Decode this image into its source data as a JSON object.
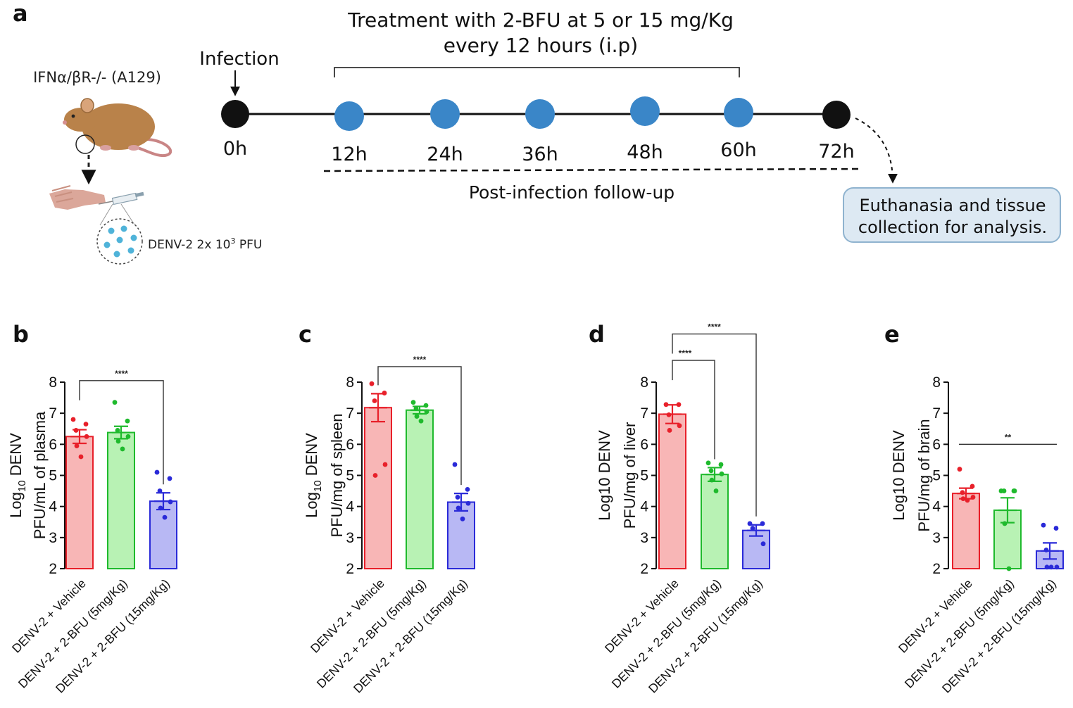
{
  "panels": {
    "a": "a",
    "b": "b",
    "c": "c",
    "d": "d",
    "e": "e"
  },
  "timeline": {
    "treatment_line1": "Treatment with 2-BFU at 5 or 15 mg/Kg",
    "treatment_line2": "every 12 hours (i.p)",
    "infection_label": "Infection",
    "mouse_label": "IFNα/βR-/- (A129)",
    "inoculum_label": "DENV-2 2x 10",
    "inoculum_exp": "3",
    "inoculum_unit": " PFU",
    "followup_label": "Post-infection follow-up",
    "euthanasia_line1": "Euthanasia and tissue",
    "euthanasia_line2": "collection for analysis.",
    "times": [
      "0h",
      "12h",
      "24h",
      "36h",
      "48h",
      "60h",
      "72h"
    ],
    "time_types": [
      "infection",
      "treatment",
      "treatment",
      "treatment",
      "treatment",
      "treatment",
      "endpoint"
    ],
    "colors": {
      "infection": "#111111",
      "treatment": "#3a86c8",
      "endpoint": "#111111"
    }
  },
  "chart_data": [
    {
      "panel": "b",
      "type": "bar",
      "ylabel_prefix": "Log",
      "ylabel_sub": "10",
      "ylabel_rest": " DENV",
      "ylabel2": "PFU/mL of plasma",
      "ylim": [
        2,
        8
      ],
      "yticks": [
        "2",
        "3",
        "4",
        "5",
        "6",
        "7",
        "8"
      ],
      "categories": [
        "DENV-2 + Vehicle",
        "DENV-2 + 2-BFU (5mg/Kg)",
        "DENV-2 + 2-BFU (15mg/Kg)"
      ],
      "colors": [
        "#e8202a",
        "#1fba2d",
        "#2a2ad8"
      ],
      "fills": [
        "#f8b6b6",
        "#b8f2b4",
        "#b8b8f4"
      ],
      "means": [
        6.25,
        6.38,
        4.17
      ],
      "sem": [
        0.22,
        0.2,
        0.27
      ],
      "points": [
        [
          6.8,
          6.65,
          6.45,
          6.25,
          5.95,
          5.6
        ],
        [
          7.35,
          6.75,
          6.45,
          6.25,
          6.1,
          5.85
        ],
        [
          5.1,
          4.9,
          4.5,
          4.15,
          3.95,
          3.65
        ]
      ],
      "comparisons": [
        {
          "from": 0,
          "to": 2,
          "label": "****",
          "y": 8.05
        }
      ]
    },
    {
      "panel": "c",
      "type": "bar",
      "ylabel_prefix": "Log",
      "ylabel_sub": "10",
      "ylabel_rest": " DENV",
      "ylabel2": "PFU/mg of spleen",
      "ylim": [
        2,
        8
      ],
      "yticks": [
        "2",
        "3",
        "4",
        "5",
        "6",
        "7",
        "8"
      ],
      "categories": [
        "DENV-2 + Vehicle",
        "DENV-2 + 2-BFU (5mg/Kg)",
        "DENV-2 + 2-BFU (15mg/Kg)"
      ],
      "colors": [
        "#e8202a",
        "#1fba2d",
        "#2a2ad8"
      ],
      "fills": [
        "#f8b6b6",
        "#b8f2b4",
        "#b8b8f4"
      ],
      "means": [
        7.18,
        7.1,
        4.14
      ],
      "sem": [
        0.45,
        0.12,
        0.28
      ],
      "points": [
        [
          7.95,
          7.65,
          7.4,
          5.35,
          5.0
        ],
        [
          7.35,
          7.25,
          7.15,
          7.05,
          6.9,
          6.75
        ],
        [
          5.35,
          4.55,
          4.3,
          4.1,
          3.95,
          3.6
        ]
      ],
      "comparisons": [
        {
          "from": 0,
          "to": 2,
          "label": "****",
          "y": 8.5
        }
      ]
    },
    {
      "panel": "d",
      "type": "bar",
      "ylabel_prefix": "Log10 DENV",
      "ylabel_sub": "",
      "ylabel_rest": "",
      "ylabel2": "PFU/mg of liver",
      "ylim": [
        2,
        8
      ],
      "yticks": [
        "2",
        "3",
        "4",
        "5",
        "6",
        "7",
        "8"
      ],
      "categories": [
        "DENV-2 + Vehicle",
        "DENV-2 + 2-BFU (5mg/Kg)",
        "DENV-2 + 2-BFU (15mg/Kg)"
      ],
      "colors": [
        "#e8202a",
        "#1fba2d",
        "#2a2ad8"
      ],
      "fills": [
        "#f8b6b6",
        "#b8f2b4",
        "#b8b8f4"
      ],
      "means": [
        6.97,
        5.03,
        3.23
      ],
      "sem": [
        0.3,
        0.22,
        0.18
      ],
      "points": [
        [
          7.28,
          7.28,
          6.95,
          6.6,
          6.45
        ],
        [
          5.4,
          5.35,
          5.15,
          5.05,
          4.85,
          4.5
        ],
        [
          3.45,
          3.45,
          3.3,
          2.8
        ]
      ],
      "comparisons": [
        {
          "from": 0,
          "to": 1,
          "label": "****",
          "y": 8.7
        },
        {
          "from": 0,
          "to": 2,
          "label": "****",
          "y": 9.55
        }
      ]
    },
    {
      "panel": "e",
      "type": "bar",
      "ylabel_prefix": "Log10 DENV",
      "ylabel_sub": "",
      "ylabel_rest": "",
      "ylabel2": "PFU/mg of brain",
      "ylim": [
        2,
        8
      ],
      "yticks": [
        "2",
        "3",
        "4",
        "5",
        "6",
        "7",
        "8"
      ],
      "categories": [
        "DENV-2 + Vehicle",
        "DENV-2 + 2-BFU (5mg/Kg)",
        "DENV-2 + 2-BFU (15mg/Kg)"
      ],
      "colors": [
        "#e8202a",
        "#1fba2d",
        "#2a2ad8"
      ],
      "fills": [
        "#f8b6b6",
        "#b8f2b4",
        "#b8b8f4"
      ],
      "means": [
        4.42,
        3.88,
        2.57
      ],
      "sem": [
        0.17,
        0.4,
        0.26
      ],
      "points": [
        [
          5.2,
          4.65,
          4.45,
          4.3,
          4.25,
          4.2
        ],
        [
          4.5,
          4.5,
          4.5,
          4.5,
          3.45,
          2.0
        ],
        [
          3.4,
          3.3,
          2.6,
          2.05,
          2.05,
          2.05
        ]
      ],
      "comparisons": [
        {
          "from": 0,
          "to": 2,
          "label": "**",
          "y": 6.0
        }
      ]
    }
  ]
}
